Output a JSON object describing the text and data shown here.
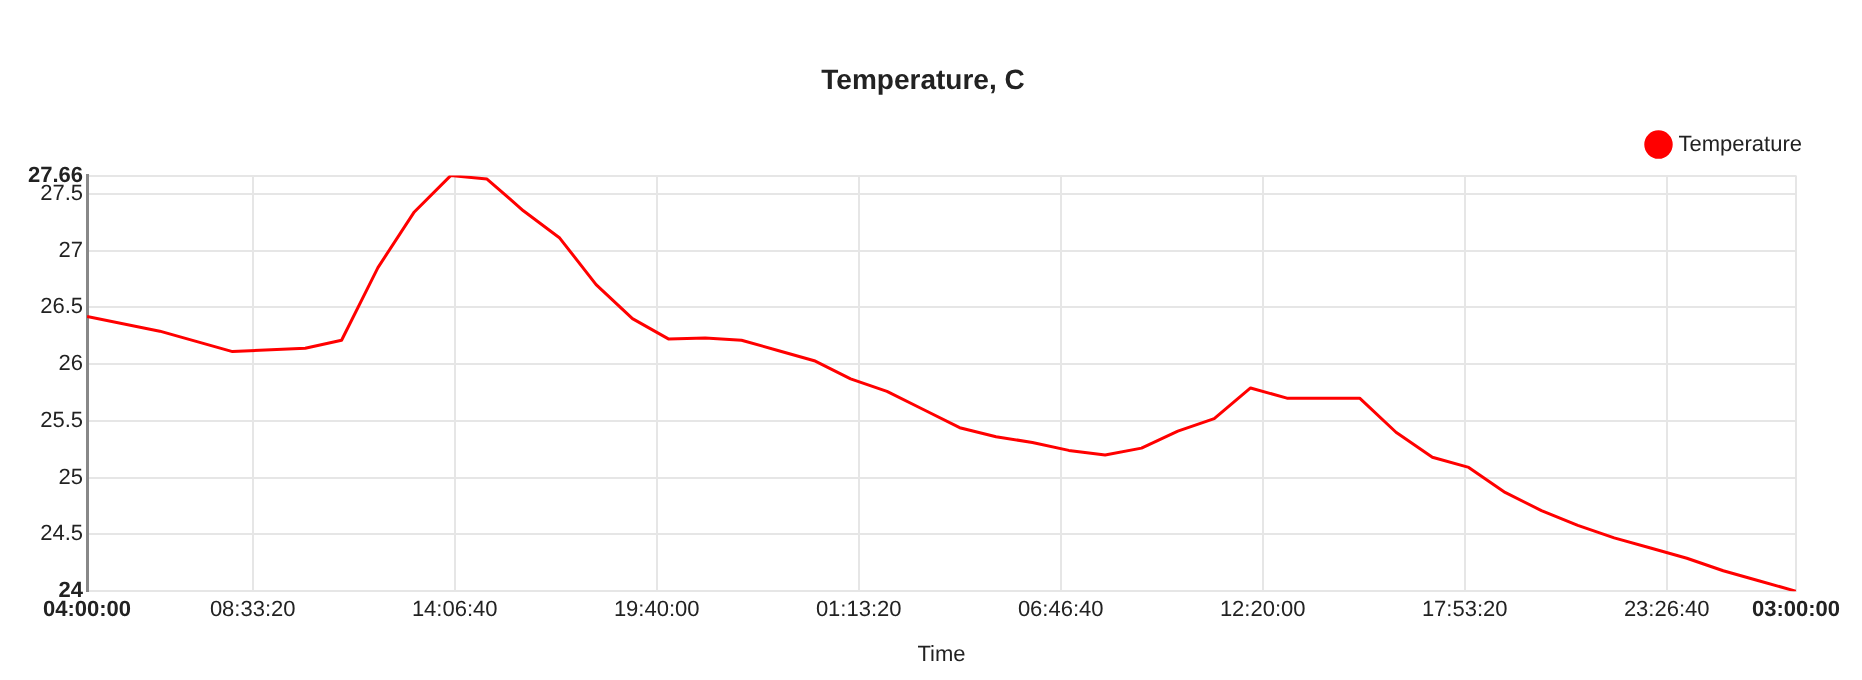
{
  "chart_data": {
    "type": "line",
    "title": "Temperature, C",
    "xlabel": "Time",
    "x": [
      "--01-01T04:00",
      "--01-01T06:00",
      "--01-01T08:00",
      "--01-01T10:00",
      "--01-01T11:00",
      "--01-01T12:00",
      "--01-01T13:00",
      "--01-01T14:00",
      "--01-01T15:00",
      "--01-01T16:00",
      "--01-01T17:00",
      "--01-01T18:00",
      "--01-01T19:00",
      "--01-01T20:00",
      "--01-01T21:00",
      "--01-01T22:00",
      "--01-01T23:00",
      "--01-02T00:00",
      "--01-02T01:00",
      "--01-02T02:00",
      "--01-02T03:00",
      "--01-02T04:00",
      "--01-02T05:00",
      "--01-02T06:00",
      "--01-02T07:00",
      "--01-02T08:00",
      "--01-02T09:00",
      "--01-02T10:00",
      "--01-02T11:00",
      "--01-02T12:00",
      "--01-02T13:00",
      "--01-02T15:00",
      "--01-02T16:00",
      "--01-02T17:00",
      "--01-02T18:00",
      "--01-02T19:00",
      "--01-02T20:00",
      "--01-02T21:00",
      "--01-02T22:00",
      "--01-02T23:00",
      "--01-03T00:00",
      "--01-03T01:00",
      "--01-03T02:00",
      "--01-03T03:00"
    ],
    "series": [
      {
        "name": "Temperature",
        "color": "#ff0000",
        "values": [
          26.42,
          26.29,
          26.11,
          26.14,
          26.21,
          26.85,
          27.34,
          27.66,
          27.63,
          27.35,
          27.11,
          26.7,
          26.4,
          26.22,
          26.23,
          26.21,
          26.12,
          26.03,
          25.87,
          25.76,
          25.6,
          25.44,
          25.36,
          25.31,
          25.24,
          25.2,
          25.26,
          25.41,
          25.52,
          25.79,
          25.7,
          25.7,
          25.4,
          25.18,
          25.09,
          24.87,
          24.71,
          24.58,
          24.47,
          24.38,
          24.29,
          24.18,
          24.09,
          24.0
        ]
      }
    ],
    "xlim": [
      "--01-01T04:00",
      "--01-03T03:00"
    ],
    "xticks": [
      {
        "value": "--01-01T04:00:00",
        "label": "04:00:00"
      },
      {
        "value": "--01-01T08:33:20",
        "label": "08:33:20"
      },
      {
        "value": "--01-01T14:06:40",
        "label": "14:06:40"
      },
      {
        "value": "--01-01T19:40:00",
        "label": "19:40:00"
      },
      {
        "value": "--01-02T01:13:20",
        "label": "01:13:20"
      },
      {
        "value": "--01-02T06:46:40",
        "label": "06:46:40"
      },
      {
        "value": "--01-02T12:20:00",
        "label": "12:20:00"
      },
      {
        "value": "--01-02T17:53:20",
        "label": "17:53:20"
      },
      {
        "value": "--01-02T23:26:40",
        "label": "23:26:40"
      },
      {
        "value": "--01-03T03:00:00",
        "label": "03:00:00"
      }
    ],
    "ylim": [
      24,
      27.66
    ],
    "yticks": [
      24,
      24.5,
      25,
      25.5,
      26,
      26.5,
      27,
      27.5,
      27.66
    ],
    "grid": true,
    "legend": "top right",
    "marker": "none",
    "line_style": "solid"
  }
}
